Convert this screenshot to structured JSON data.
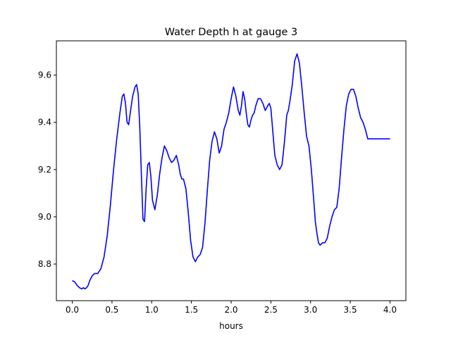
{
  "chart_data": {
    "type": "line",
    "title": "Water Depth h at gauge 3",
    "xlabel": "hours",
    "ylabel": "",
    "xlim": [
      -0.2,
      4.2
    ],
    "ylim": [
      8.645,
      9.745
    ],
    "xticks": [
      "0.0",
      "0.5",
      "1.0",
      "1.5",
      "2.0",
      "2.5",
      "3.0",
      "3.5",
      "4.0"
    ],
    "yticks": [
      "8.8",
      "9.0",
      "9.2",
      "9.4",
      "9.6"
    ],
    "grid": false,
    "series": [
      {
        "color": "#0000ff",
        "x": [
          0.0,
          0.03,
          0.06,
          0.09,
          0.12,
          0.14,
          0.16,
          0.18,
          0.2,
          0.22,
          0.25,
          0.28,
          0.32,
          0.36,
          0.4,
          0.44,
          0.48,
          0.52,
          0.56,
          0.6,
          0.63,
          0.65,
          0.67,
          0.69,
          0.71,
          0.73,
          0.76,
          0.79,
          0.81,
          0.83,
          0.85,
          0.87,
          0.89,
          0.91,
          0.93,
          0.95,
          0.97,
          0.99,
          1.01,
          1.04,
          1.07,
          1.1,
          1.13,
          1.16,
          1.19,
          1.22,
          1.25,
          1.28,
          1.31,
          1.34,
          1.36,
          1.38,
          1.4,
          1.43,
          1.46,
          1.49,
          1.52,
          1.55,
          1.58,
          1.61,
          1.64,
          1.67,
          1.7,
          1.73,
          1.76,
          1.79,
          1.82,
          1.85,
          1.88,
          1.91,
          1.94,
          1.97,
          2.0,
          2.03,
          2.06,
          2.09,
          2.11,
          2.13,
          2.15,
          2.17,
          2.19,
          2.21,
          2.23,
          2.25,
          2.27,
          2.29,
          2.31,
          2.34,
          2.37,
          2.4,
          2.43,
          2.46,
          2.48,
          2.5,
          2.52,
          2.55,
          2.58,
          2.61,
          2.64,
          2.66,
          2.68,
          2.7,
          2.72,
          2.74,
          2.77,
          2.8,
          2.83,
          2.86,
          2.89,
          2.92,
          2.95,
          2.98,
          3.01,
          3.04,
          3.06,
          3.08,
          3.1,
          3.12,
          3.15,
          3.18,
          3.21,
          3.24,
          3.27,
          3.3,
          3.33,
          3.36,
          3.39,
          3.42,
          3.45,
          3.48,
          3.51,
          3.54,
          3.57,
          3.6,
          3.63,
          3.66,
          3.69,
          3.72,
          3.75,
          3.78,
          3.81,
          3.84,
          3.87,
          3.9,
          3.93,
          3.96,
          4.0
        ],
        "y": [
          8.73,
          8.725,
          8.71,
          8.7,
          8.695,
          8.7,
          8.695,
          8.7,
          8.71,
          8.73,
          8.75,
          8.76,
          8.76,
          8.78,
          8.83,
          8.92,
          9.05,
          9.2,
          9.33,
          9.44,
          9.51,
          9.52,
          9.48,
          9.4,
          9.39,
          9.44,
          9.51,
          9.55,
          9.56,
          9.52,
          9.38,
          9.18,
          8.99,
          8.98,
          9.12,
          9.22,
          9.23,
          9.17,
          9.07,
          9.03,
          9.09,
          9.18,
          9.25,
          9.3,
          9.28,
          9.25,
          9.23,
          9.24,
          9.26,
          9.22,
          9.18,
          9.16,
          9.16,
          9.12,
          9.02,
          8.9,
          8.83,
          8.81,
          8.83,
          8.84,
          8.87,
          8.97,
          9.11,
          9.24,
          9.32,
          9.36,
          9.33,
          9.27,
          9.3,
          9.37,
          9.4,
          9.44,
          9.5,
          9.55,
          9.51,
          9.45,
          9.43,
          9.47,
          9.53,
          9.5,
          9.44,
          9.39,
          9.38,
          9.41,
          9.43,
          9.44,
          9.47,
          9.5,
          9.5,
          9.48,
          9.45,
          9.47,
          9.48,
          9.46,
          9.38,
          9.26,
          9.22,
          9.2,
          9.22,
          9.28,
          9.35,
          9.43,
          9.45,
          9.49,
          9.56,
          9.66,
          9.69,
          9.65,
          9.55,
          9.44,
          9.34,
          9.3,
          9.2,
          9.07,
          8.98,
          8.93,
          8.89,
          8.88,
          8.89,
          8.89,
          8.91,
          8.96,
          9.0,
          9.03,
          9.04,
          9.12,
          9.25,
          9.37,
          9.47,
          9.52,
          9.54,
          9.54,
          9.51,
          9.46,
          9.42,
          9.4,
          9.37,
          9.33,
          9.33,
          9.33,
          9.33,
          9.33,
          9.33,
          9.33,
          9.33,
          9.33,
          9.33
        ]
      }
    ]
  }
}
